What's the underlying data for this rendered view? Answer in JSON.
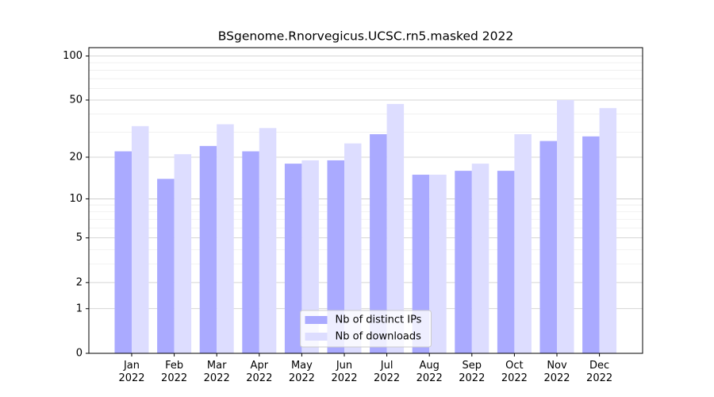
{
  "chart_data": {
    "type": "bar",
    "title": "BSgenome.Rnorvegicus.UCSC.rn5.masked 2022",
    "categories": [
      "Jan\n2022",
      "Feb\n2022",
      "Mar\n2022",
      "Apr\n2022",
      "May\n2022",
      "Jun\n2022",
      "Jul\n2022",
      "Aug\n2022",
      "Sep\n2022",
      "Oct\n2022",
      "Nov\n2022",
      "Dec\n2022"
    ],
    "series": [
      {
        "name": "Nb of distinct IPs",
        "color": "#aaaaff",
        "values": [
          22,
          14,
          24,
          22,
          18,
          19,
          29,
          15,
          16,
          16,
          26,
          28
        ]
      },
      {
        "name": "Nb of downloads",
        "color": "#ddddff",
        "values": [
          33,
          21,
          34,
          32,
          19,
          25,
          47,
          15,
          18,
          29,
          50,
          44
        ]
      }
    ],
    "yscale": "log1p",
    "ylim": [
      0,
      114
    ],
    "yticks": [
      0,
      1,
      2,
      5,
      10,
      20,
      50,
      100
    ],
    "minor_yticks": [
      3,
      4,
      6,
      7,
      8,
      9,
      30,
      40,
      60,
      70,
      80,
      90
    ],
    "grid": true,
    "legend": "lower center"
  }
}
